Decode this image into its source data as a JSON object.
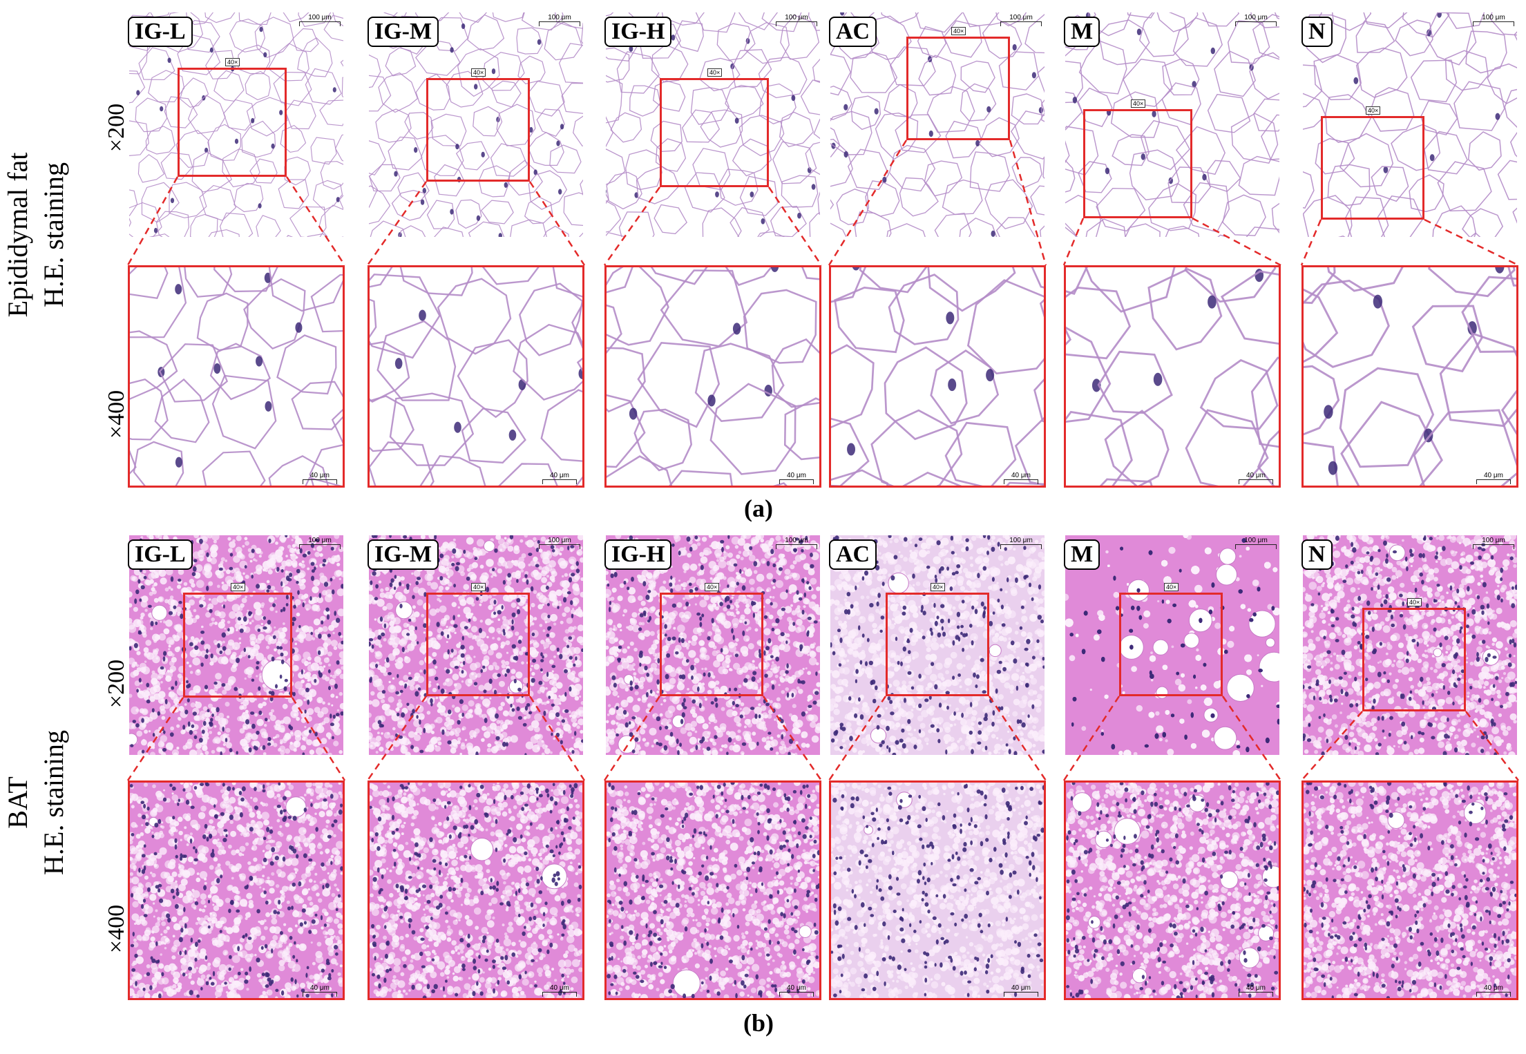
{
  "groups": [
    "IG-L",
    "IG-M",
    "IG-H",
    "AC",
    "M",
    "N"
  ],
  "panel_a": {
    "row_label_line1": "Epididymal fat",
    "row_label_line2": "H.E. staining",
    "mag_top": "×200",
    "mag_bottom": "×400",
    "caption": "(a)",
    "scale_200": "100 μm",
    "scale_400": "40 μm",
    "roi_tag": "40×"
  },
  "panel_b": {
    "row_label_line1": "BAT",
    "row_label_line2": "H.E. staining",
    "mag_top": "×200",
    "mag_bottom": "×400",
    "caption": "(b)",
    "scale_200": "100 μm",
    "scale_400": "40 μm",
    "roi_tag": "40×"
  },
  "colors": {
    "roi_red": "#e32a2a",
    "adipose_bg": "#ffffff",
    "adipose_membrane": "#b48cc8",
    "nucleus": "#3d2a78",
    "bat_bg": "#e08ad8",
    "bat_pale": "#ead0ee"
  }
}
